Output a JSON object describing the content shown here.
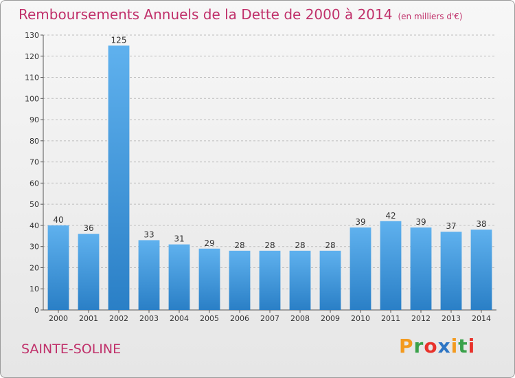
{
  "chart_data": {
    "type": "bar",
    "title": "Remboursements Annuels de la Dette de 2000 à 2014",
    "subtitle": "(en milliers d'€)",
    "categories": [
      "2000",
      "2001",
      "2002",
      "2003",
      "2004",
      "2005",
      "2006",
      "2007",
      "2008",
      "2009",
      "2010",
      "2011",
      "2012",
      "2013",
      "2014"
    ],
    "values": [
      40,
      36,
      125,
      33,
      31,
      29,
      28,
      28,
      28,
      28,
      39,
      42,
      39,
      37,
      38
    ],
    "ylim": [
      0,
      130
    ],
    "yticks": [
      0,
      10,
      20,
      30,
      40,
      50,
      60,
      70,
      80,
      90,
      100,
      110,
      120,
      130
    ],
    "grid": true,
    "bar_color": "#3a92d8"
  },
  "footer": {
    "commune": "SAINTE-SOLINE",
    "logo_letters": [
      "P",
      "r",
      "o",
      "x",
      "i",
      "t",
      "i"
    ],
    "logo_colors": [
      "#f39a1e",
      "#3aa14a",
      "#e8322b",
      "#2d75c4",
      "#f39a1e",
      "#3aa14a",
      "#e8322b"
    ]
  }
}
